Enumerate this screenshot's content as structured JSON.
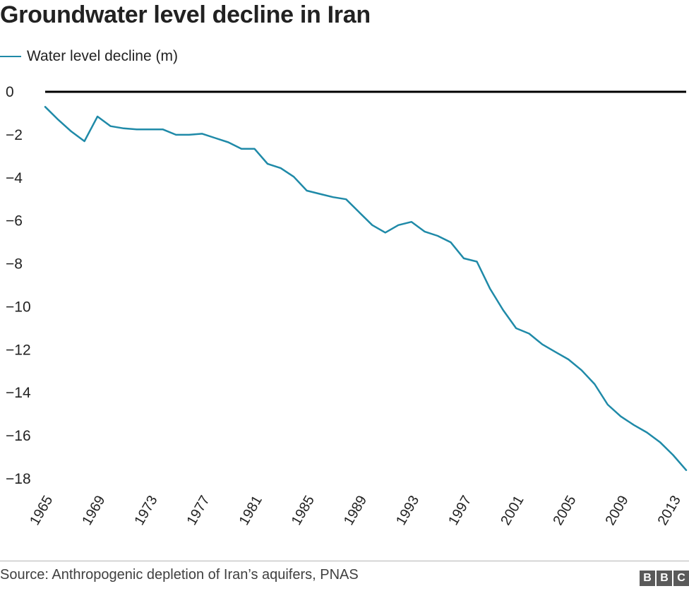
{
  "page": {
    "title": "Groundwater level decline in Iran",
    "source": "Source: Anthropogenic depletion of Iran’s aquifers, PNAS",
    "logo_text": "BBC"
  },
  "colors": {
    "series": "#1f8aa8",
    "zero_line": "#000000",
    "text": "#222222"
  },
  "chart_data": {
    "type": "line",
    "title": "Groundwater level decline in Iran",
    "xlabel": "",
    "ylabel": "",
    "xlim": [
      1965,
      2014
    ],
    "ylim": [
      -18,
      0
    ],
    "x_ticks": [
      1965,
      1969,
      1973,
      1977,
      1981,
      1985,
      1989,
      1993,
      1997,
      2001,
      2005,
      2009,
      2013
    ],
    "y_ticks": [
      0,
      -2,
      -4,
      -6,
      -8,
      -10,
      -12,
      -14,
      -16,
      -18
    ],
    "grid": false,
    "legend_position": "top-left",
    "series": [
      {
        "name": "Water level decline (m)",
        "x": [
          1965,
          1966,
          1967,
          1968,
          1969,
          1970,
          1971,
          1972,
          1973,
          1974,
          1975,
          1976,
          1977,
          1978,
          1979,
          1980,
          1981,
          1982,
          1983,
          1984,
          1985,
          1986,
          1987,
          1988,
          1989,
          1990,
          1991,
          1992,
          1993,
          1994,
          1995,
          1996,
          1997,
          1998,
          1999,
          2000,
          2001,
          2002,
          2003,
          2004,
          2005,
          2006,
          2007,
          2008,
          2009,
          2010,
          2011,
          2012,
          2013,
          2014
        ],
        "values": [
          -0.7,
          -1.3,
          -1.85,
          -2.3,
          -1.15,
          -1.6,
          -1.7,
          -1.75,
          -1.75,
          -1.75,
          -2.0,
          -2.0,
          -1.95,
          -2.15,
          -2.35,
          -2.65,
          -2.65,
          -3.35,
          -3.55,
          -3.95,
          -4.6,
          -4.75,
          -4.9,
          -5.0,
          -5.6,
          -6.2,
          -6.55,
          -6.2,
          -6.05,
          -6.5,
          -6.7,
          -7.0,
          -7.75,
          -7.9,
          -9.15,
          -10.15,
          -11.0,
          -11.25,
          -11.75,
          -12.1,
          -12.45,
          -12.95,
          -13.6,
          -14.55,
          -15.1,
          -15.5,
          -15.85,
          -16.3,
          -16.9,
          -17.6
        ]
      }
    ]
  }
}
